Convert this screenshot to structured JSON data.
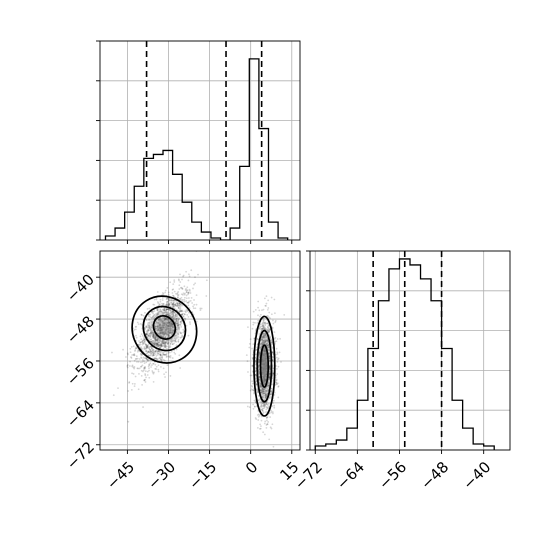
{
  "chart_data": {
    "type": "corner",
    "parameters": [
      "x",
      "y"
    ],
    "panels": [
      {
        "panel": "hist-x",
        "type": "histogram-step",
        "xlim": [
          -55,
          18
        ],
        "ylim": [
          0,
          1.0
        ],
        "bin_edges": [
          -53,
          -49.5,
          -46,
          -42.5,
          -39,
          -35.5,
          -32,
          -28.5,
          -25,
          -21.5,
          -18,
          -14.5,
          -11,
          -7.5,
          -4,
          -0.5,
          3,
          6.5,
          10,
          13.5
        ],
        "counts": [
          0.02,
          0.06,
          0.14,
          0.27,
          0.41,
          0.43,
          0.45,
          0.33,
          0.19,
          0.09,
          0.04,
          0.01,
          0,
          0.06,
          0.37,
          0.91,
          0.56,
          0.09,
          0.01
        ],
        "quantiles": [
          -38,
          -9,
          4
        ],
        "xticks": [
          -45,
          -30,
          -15,
          0,
          15
        ],
        "yticks": [
          0,
          0.2,
          0.4,
          0.6,
          0.8,
          1.0
        ],
        "grid": true
      },
      {
        "panel": "hist-y",
        "type": "histogram-step",
        "xlim": [
          -73,
          -35
        ],
        "ylim": [
          0,
          1.0
        ],
        "bin_edges": [
          -72,
          -70,
          -68,
          -66,
          -64,
          -62,
          -60,
          -58,
          -56,
          -54,
          -52,
          -50,
          -48,
          -46,
          -44,
          -42,
          -40,
          -38
        ],
        "counts": [
          0.02,
          0.03,
          0.05,
          0.11,
          0.25,
          0.51,
          0.75,
          0.91,
          0.96,
          0.93,
          0.86,
          0.75,
          0.51,
          0.25,
          0.11,
          0.03,
          0.02
        ],
        "quantiles": [
          -61,
          -55,
          -48
        ],
        "xticks": [
          -72,
          -64,
          -56,
          -48,
          -40
        ],
        "xticklabels": [
          "−72",
          "−64",
          "−56",
          "−48",
          "−40"
        ],
        "yticks": [
          0,
          0.2,
          0.4,
          0.6,
          0.8,
          1.0
        ],
        "grid": true
      },
      {
        "panel": "joint-xy",
        "type": "scatter-density-contour",
        "xlim": [
          -55,
          18
        ],
        "ylim": [
          -73,
          -35
        ],
        "xticks": [
          -45,
          -30,
          -15,
          0,
          15
        ],
        "xticklabels": [
          "−45",
          "−30",
          "−15",
          "0",
          "15"
        ],
        "yticks": [
          -40,
          -48,
          -56,
          -64,
          -72
        ],
        "yticklabels": [
          "−40",
          "−48",
          "−56",
          "−64",
          "−72"
        ],
        "grid": true,
        "clusters": [
          {
            "center_x": -32,
            "center_y": -50,
            "sd_x": 5.5,
            "sd_y": 4.2,
            "rotation_deg": -30,
            "n": 1600
          },
          {
            "center_x": 5,
            "center_y": -57,
            "sd_x": 2.0,
            "sd_y": 4.5,
            "rotation_deg": 0,
            "n": 1500
          }
        ],
        "contours": [
          {
            "cx": -31.5,
            "cy": -50,
            "rx": 11.5,
            "ry": 6.5,
            "rot": -32
          },
          {
            "cx": -31.5,
            "cy": -49.8,
            "rx": 7.5,
            "ry": 4.3,
            "rot": -32
          },
          {
            "cx": -31.5,
            "cy": -49.6,
            "rx": 3.8,
            "ry": 2.3,
            "rot": -32
          },
          {
            "cx": 5,
            "cy": -57,
            "rx": 3.8,
            "ry": 9.5,
            "rot": 0
          },
          {
            "cx": 5,
            "cy": -57,
            "rx": 2.6,
            "ry": 6.8,
            "rot": 0
          },
          {
            "cx": 5,
            "cy": -57,
            "rx": 1.4,
            "ry": 4.0,
            "rot": 0
          }
        ]
      }
    ]
  },
  "colors": {
    "line": "#000000",
    "grid": "#b0b0b0",
    "points": "#000000",
    "density": "#808080"
  }
}
